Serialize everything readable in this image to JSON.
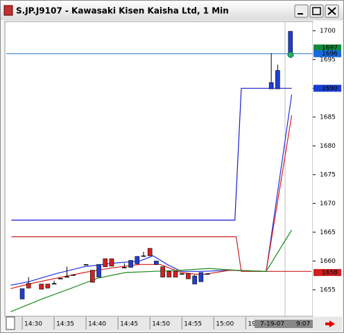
{
  "chart_data": {
    "type": "candlestick",
    "title": "S.JP.J9107 - Kawasaki Kisen Kaisha Ltd, 1 Min",
    "xlim": [
      -2.5,
      45.5
    ],
    "ylim": [
      1650.4,
      1701.6
    ],
    "yticks": [
      1655,
      1660,
      1665,
      1670,
      1675,
      1680,
      1685,
      1690,
      1695,
      1700
    ],
    "xticks": [
      {
        "value": 0,
        "label": "14:30"
      },
      {
        "value": 5,
        "label": "14:35"
      },
      {
        "value": 10,
        "label": "14:40"
      },
      {
        "value": 15,
        "label": "14:45"
      },
      {
        "value": 20,
        "label": "14:50"
      },
      {
        "value": 25,
        "label": "14:55"
      },
      {
        "value": 30,
        "label": "15:00"
      },
      {
        "value": 35,
        "label": "19-"
      }
    ],
    "cursor_date": "7-19-07",
    "cursor_time": "9:07",
    "up_color": "#1f3fd6",
    "down_color": "#d42020",
    "flat_color": "#000000",
    "x": [
      0,
      1,
      3,
      4,
      5,
      6,
      7,
      8,
      10,
      11,
      12,
      13,
      14,
      16,
      17,
      18,
      19,
      20,
      21,
      22,
      23,
      24,
      25,
      26,
      27,
      28,
      29,
      39,
      40,
      42
    ],
    "open": [
      1653.4,
      1656.1,
      1656.0,
      1656.0,
      1656.1,
      1657.0,
      1657.3,
      1657.6,
      1659.4,
      1658.4,
      1657.2,
      1660.4,
      1660.4,
      1658.9,
      1658.9,
      1659.5,
      1660.9,
      1662.2,
      1659.4,
      1659.0,
      1658.2,
      1658.2,
      1657.8,
      1657.8,
      1656.0,
      1656.4,
      1657.8,
      1689.9,
      1689.9,
      1696.1
    ],
    "high": [
      1655.2,
      1657.2,
      1656.0,
      1656.0,
      1656.6,
      1657.0,
      1659.0,
      1657.6,
      1659.4,
      1658.4,
      1659.4,
      1660.4,
      1660.4,
      1659.6,
      1660.1,
      1660.8,
      1661.6,
      1662.2,
      1660.0,
      1659.0,
      1658.2,
      1658.2,
      1657.8,
      1657.8,
      1657.6,
      1658.0,
      1657.8,
      1696.1,
      1694.1,
      1699.9
    ],
    "low": [
      1653.4,
      1655.3,
      1655.1,
      1655.3,
      1656.1,
      1657.0,
      1657.3,
      1657.6,
      1659.4,
      1656.3,
      1657.2,
      1659.0,
      1659.1,
      1658.9,
      1658.9,
      1659.5,
      1660.9,
      1660.9,
      1659.4,
      1657.2,
      1657.2,
      1657.2,
      1657.8,
      1656.9,
      1656.0,
      1656.4,
      1657.8,
      1689.9,
      1689.9,
      1696.1
    ],
    "close": [
      1655.2,
      1655.3,
      1655.1,
      1655.3,
      1656.1,
      1657.0,
      1657.3,
      1657.6,
      1659.4,
      1656.3,
      1659.4,
      1659.0,
      1659.1,
      1658.9,
      1660.1,
      1660.8,
      1660.9,
      1660.9,
      1660.0,
      1657.2,
      1657.2,
      1657.2,
      1657.8,
      1656.9,
      1657.4,
      1658.0,
      1657.8,
      1691.0,
      1693.1,
      1699.9
    ],
    "lines": [
      {
        "color": "#1a1ad0",
        "x": [
          -1.7,
          33.3,
          34.3,
          42.2
        ],
        "values": [
          1667.1,
          1667.1,
          1690.0,
          1690.0
        ]
      },
      {
        "color": "#c82020",
        "x": [
          -1.7,
          33.5,
          34.3,
          45.3
        ],
        "values": [
          1664.2,
          1664.2,
          1658.2,
          1658.2
        ]
      },
      {
        "color": "#2030e0",
        "x": [
          -1.8,
          1,
          5.3,
          9.7,
          14,
          18.4,
          20.5,
          22.7,
          24.9,
          28.1,
          32.5,
          38.2,
          42.2
        ],
        "values": [
          1655.8,
          1656.4,
          1657.8,
          1659.0,
          1659.6,
          1660.0,
          1660.9,
          1659.4,
          1658.2,
          1658.2,
          1658.4,
          1658.2,
          1688.9
        ]
      },
      {
        "color": "#e01818",
        "x": [
          -1.8,
          1,
          5.3,
          9.7,
          14,
          18.4,
          21.6,
          24.9,
          28.1,
          32.5,
          38.2,
          42.2
        ],
        "values": [
          1655.2,
          1656.0,
          1657.0,
          1658.0,
          1658.8,
          1659.4,
          1659.4,
          1658.0,
          1657.6,
          1658.4,
          1658.2,
          1685.3
        ]
      },
      {
        "color": "#1a8a1a",
        "x": [
          -1.8,
          3.1,
          7.5,
          11.8,
          16.2,
          20.5,
          24.9,
          29.2,
          33.5,
          38.2,
          42.2
        ],
        "values": [
          1651.2,
          1653.4,
          1655.2,
          1657.0,
          1658.0,
          1658.2,
          1658.4,
          1658.7,
          1658.4,
          1658.2,
          1665.4
        ]
      }
    ],
    "hline": {
      "value": 1696,
      "color": "#2a7fd0"
    },
    "price_flags": [
      {
        "value": 1697,
        "color": "#128a3a"
      },
      {
        "value": 1696,
        "color": "#1a6ae0"
      },
      {
        "value": 1690,
        "color": "#1a3fd0"
      },
      {
        "value": 1658,
        "color": "#d02020"
      }
    ]
  }
}
